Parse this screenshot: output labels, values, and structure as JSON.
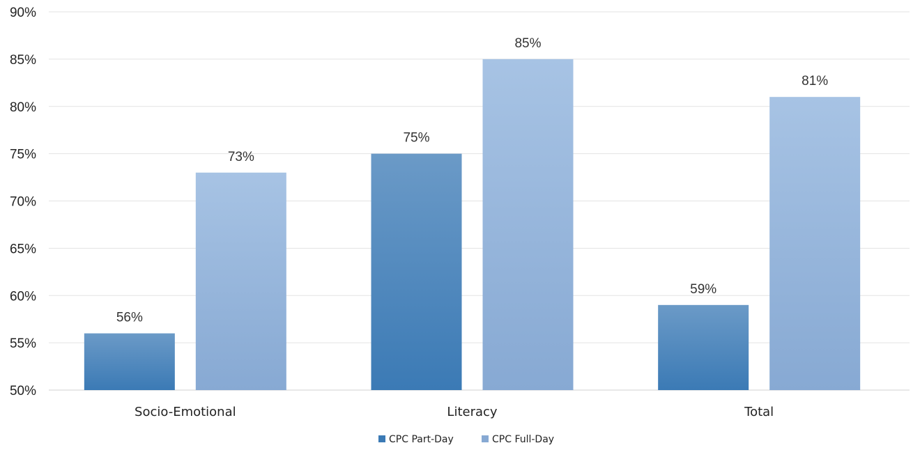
{
  "chart_data": {
    "type": "bar",
    "categories": [
      "Socio-Emotional",
      "Literacy",
      "Total"
    ],
    "series": [
      {
        "name": "CPC Part-Day",
        "values": [
          56,
          75,
          59
        ],
        "data_labels": [
          "56%",
          "75%",
          "59%"
        ],
        "color_top": "#6b9ac7",
        "color_bottom": "#3b7ab5"
      },
      {
        "name": "CPC Full-Day",
        "values": [
          73,
          85,
          81
        ],
        "data_labels": [
          "73%",
          "85%",
          "81%"
        ],
        "color_top": "#a7c3e4",
        "color_bottom": "#87a9d3"
      }
    ],
    "ylim": [
      50,
      90
    ],
    "yticks": [
      50,
      55,
      60,
      65,
      70,
      75,
      80,
      85,
      90
    ],
    "ytick_labels": [
      "50%",
      "55%",
      "60%",
      "65%",
      "70%",
      "75%",
      "80%",
      "85%",
      "90%"
    ],
    "title": "",
    "xlabel": "",
    "ylabel": "",
    "grid": true,
    "legend_position": "bottom"
  }
}
